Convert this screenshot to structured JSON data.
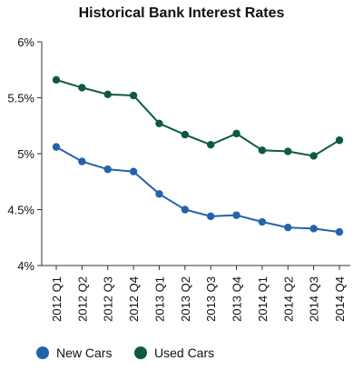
{
  "chart_data": {
    "type": "line",
    "title": "Historical Bank Interest Rates",
    "categories": [
      "2012 Q1",
      "2012 Q2",
      "2012 Q3",
      "2012 Q4",
      "2013 Q1",
      "2013 Q2",
      "2013 Q3",
      "2013 Q4",
      "2014 Q1",
      "2014 Q2",
      "2014 Q3",
      "2014 Q4"
    ],
    "ylim": [
      4,
      6
    ],
    "yticks": [
      "4%",
      "4.5%",
      "5%",
      "5.5%",
      "6%"
    ],
    "grid": false,
    "legend_placement": "bottom-left",
    "series": [
      {
        "name": "New Cars",
        "color": "#2463ac",
        "values": [
          5.06,
          4.93,
          4.86,
          4.84,
          4.64,
          4.5,
          4.44,
          4.45,
          4.39,
          4.34,
          4.33,
          4.3
        ]
      },
      {
        "name": "Used Cars",
        "color": "#0e5a3c",
        "values": [
          5.66,
          5.59,
          5.53,
          5.52,
          5.27,
          5.17,
          5.08,
          5.18,
          5.03,
          5.02,
          4.98,
          5.12
        ]
      }
    ]
  }
}
